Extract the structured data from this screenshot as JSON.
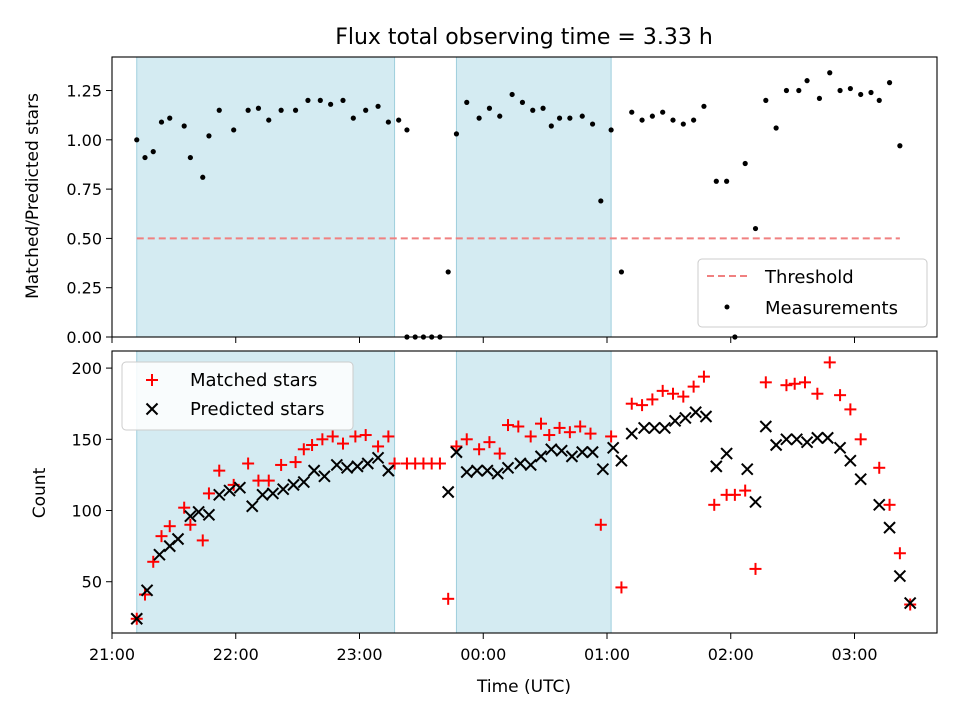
{
  "chart_data": [
    {
      "type": "scatter",
      "title": "Flux total observing time = 3.33 h",
      "ylabel": "Matched/Predicted stars",
      "xlim": [
        "21:00",
        "03:40"
      ],
      "ylim": [
        0,
        1.42
      ],
      "yticks": [
        0.0,
        0.25,
        0.5,
        0.75,
        1.0,
        1.25
      ],
      "ytick_labels": [
        "0.00",
        "0.25",
        "0.50",
        "0.75",
        "1.00",
        "1.25"
      ],
      "grid": false,
      "legend": {
        "placement": "lower-right",
        "entries": [
          "Threshold",
          "Measurements"
        ]
      },
      "shaded_intervals": [
        [
          "21:12",
          "23:17"
        ],
        [
          "23:47",
          "01:02"
        ]
      ],
      "shade_color": "#add8e6",
      "threshold": {
        "name": "Threshold",
        "value": 0.5,
        "x": [
          "21:12",
          "03:22"
        ],
        "color": "#f08080"
      },
      "series": [
        {
          "name": "Measurements",
          "color": "#000000",
          "points": [
            [
              "21:12",
              1.0
            ],
            [
              "21:16",
              0.91
            ],
            [
              "21:20",
              0.94
            ],
            [
              "21:24",
              1.09
            ],
            [
              "21:28",
              1.11
            ],
            [
              "21:35",
              1.07
            ],
            [
              "21:38",
              0.91
            ],
            [
              "21:44",
              0.81
            ],
            [
              "21:47",
              1.02
            ],
            [
              "21:52",
              1.15
            ],
            [
              "21:59",
              1.05
            ],
            [
              "22:06",
              1.15
            ],
            [
              "22:11",
              1.16
            ],
            [
              "22:16",
              1.1
            ],
            [
              "22:22",
              1.15
            ],
            [
              "22:29",
              1.15
            ],
            [
              "22:35",
              1.2
            ],
            [
              "22:41",
              1.2
            ],
            [
              "22:46",
              1.18
            ],
            [
              "22:52",
              1.2
            ],
            [
              "22:57",
              1.11
            ],
            [
              "23:03",
              1.15
            ],
            [
              "23:09",
              1.17
            ],
            [
              "23:14",
              1.09
            ],
            [
              "23:19",
              1.1
            ],
            [
              "23:23",
              1.05
            ],
            [
              "23:23",
              0.0
            ],
            [
              "23:27",
              0.0
            ],
            [
              "23:31",
              0.0
            ],
            [
              "23:35",
              0.0
            ],
            [
              "23:39",
              0.0
            ],
            [
              "23:43",
              0.33
            ],
            [
              "23:47",
              1.03
            ],
            [
              "23:52",
              1.19
            ],
            [
              "23:58",
              1.11
            ],
            [
              "00:03",
              1.16
            ],
            [
              "00:08",
              1.12
            ],
            [
              "00:14",
              1.23
            ],
            [
              "00:19",
              1.19
            ],
            [
              "00:24",
              1.15
            ],
            [
              "00:29",
              1.16
            ],
            [
              "00:33",
              1.07
            ],
            [
              "00:37",
              1.11
            ],
            [
              "00:42",
              1.11
            ],
            [
              "00:48",
              1.12
            ],
            [
              "00:53",
              1.08
            ],
            [
              "00:57",
              0.69
            ],
            [
              "01:02",
              1.05
            ],
            [
              "01:07",
              0.33
            ],
            [
              "01:12",
              1.14
            ],
            [
              "01:17",
              1.1
            ],
            [
              "01:22",
              1.12
            ],
            [
              "01:27",
              1.14
            ],
            [
              "01:32",
              1.1
            ],
            [
              "01:37",
              1.08
            ],
            [
              "01:42",
              1.1
            ],
            [
              "01:47",
              1.17
            ],
            [
              "01:53",
              0.79
            ],
            [
              "01:58",
              0.79
            ],
            [
              "02:07",
              0.88
            ],
            [
              "02:02",
              0.0
            ],
            [
              "02:12",
              0.55
            ],
            [
              "02:17",
              1.2
            ],
            [
              "02:22",
              1.06
            ],
            [
              "02:27",
              1.25
            ],
            [
              "02:33",
              1.25
            ],
            [
              "02:37",
              1.3
            ],
            [
              "02:43",
              1.21
            ],
            [
              "02:48",
              1.34
            ],
            [
              "02:53",
              1.25
            ],
            [
              "02:58",
              1.26
            ],
            [
              "03:03",
              1.23
            ],
            [
              "03:08",
              1.24
            ],
            [
              "03:12",
              1.2
            ],
            [
              "03:17",
              1.29
            ],
            [
              "03:22",
              0.97
            ]
          ]
        }
      ]
    },
    {
      "type": "scatter",
      "xlabel": "Time (UTC)",
      "ylabel": "Count",
      "xlim": [
        "21:00",
        "03:40"
      ],
      "ylim": [
        14,
        212
      ],
      "xticks": [
        "21:00",
        "22:00",
        "23:00",
        "00:00",
        "01:00",
        "02:00",
        "03:00"
      ],
      "yticks": [
        50,
        100,
        150,
        200
      ],
      "grid": false,
      "legend": {
        "placement": "upper-left",
        "entries": [
          "Matched stars",
          "Predicted stars"
        ]
      },
      "shaded_intervals": [
        [
          "21:12",
          "23:17"
        ],
        [
          "23:47",
          "01:02"
        ]
      ],
      "shade_color": "#add8e6",
      "series": [
        {
          "name": "Matched stars",
          "color": "#ff0000",
          "marker": "+",
          "points": [
            [
              "21:12",
              24
            ],
            [
              "21:16",
              41
            ],
            [
              "21:20",
              64
            ],
            [
              "21:24",
              82
            ],
            [
              "21:28",
              89
            ],
            [
              "21:35",
              102
            ],
            [
              "21:38",
              90
            ],
            [
              "21:44",
              79
            ],
            [
              "21:47",
              112
            ],
            [
              "21:52",
              128
            ],
            [
              "21:59",
              118
            ],
            [
              "22:06",
              133
            ],
            [
              "22:11",
              121
            ],
            [
              "22:16",
              121
            ],
            [
              "22:22",
              132
            ],
            [
              "22:29",
              134
            ],
            [
              "22:33",
              143
            ],
            [
              "22:37",
              146
            ],
            [
              "22:42",
              150
            ],
            [
              "22:47",
              152
            ],
            [
              "22:52",
              147
            ],
            [
              "22:58",
              152
            ],
            [
              "23:03",
              153
            ],
            [
              "23:09",
              145
            ],
            [
              "23:14",
              152
            ],
            [
              "23:17",
              133
            ],
            [
              "23:23",
              133
            ],
            [
              "23:27",
              133
            ],
            [
              "23:31",
              133
            ],
            [
              "23:35",
              133
            ],
            [
              "23:39",
              133
            ],
            [
              "23:43",
              38
            ],
            [
              "23:47",
              145
            ],
            [
              "23:52",
              150
            ],
            [
              "23:58",
              143
            ],
            [
              "00:03",
              148
            ],
            [
              "00:08",
              140
            ],
            [
              "00:12",
              160
            ],
            [
              "00:17",
              159
            ],
            [
              "00:23",
              152
            ],
            [
              "00:28",
              161
            ],
            [
              "00:32",
              153
            ],
            [
              "00:37",
              158
            ],
            [
              "00:42",
              155
            ],
            [
              "00:47",
              159
            ],
            [
              "00:52",
              154
            ],
            [
              "00:57",
              90
            ],
            [
              "01:02",
              152
            ],
            [
              "01:07",
              46
            ],
            [
              "01:12",
              175
            ],
            [
              "01:17",
              174
            ],
            [
              "01:22",
              178
            ],
            [
              "01:27",
              184
            ],
            [
              "01:32",
              182
            ],
            [
              "01:37",
              180
            ],
            [
              "01:42",
              187
            ],
            [
              "01:47",
              194
            ],
            [
              "01:52",
              104
            ],
            [
              "01:58",
              111
            ],
            [
              "02:02",
              111
            ],
            [
              "02:07",
              114
            ],
            [
              "02:12",
              59
            ],
            [
              "02:17",
              190
            ],
            [
              "02:27",
              188
            ],
            [
              "02:31",
              189
            ],
            [
              "02:36",
              190
            ],
            [
              "02:42",
              182
            ],
            [
              "02:48",
              204
            ],
            [
              "02:53",
              181
            ],
            [
              "02:58",
              171
            ],
            [
              "03:03",
              150
            ],
            [
              "03:12",
              130
            ],
            [
              "03:17",
              104
            ],
            [
              "03:22",
              70
            ],
            [
              "03:27",
              34
            ]
          ]
        },
        {
          "name": "Predicted stars",
          "color": "#000000",
          "marker": "x",
          "points": [
            [
              "21:12",
              24
            ],
            [
              "21:17",
              44
            ],
            [
              "21:23",
              69
            ],
            [
              "21:28",
              75
            ],
            [
              "21:32",
              80
            ],
            [
              "21:38",
              96
            ],
            [
              "21:42",
              99
            ],
            [
              "21:47",
              97
            ],
            [
              "21:52",
              111
            ],
            [
              "21:57",
              114
            ],
            [
              "22:02",
              116
            ],
            [
              "22:08",
              103
            ],
            [
              "22:13",
              111
            ],
            [
              "22:18",
              112
            ],
            [
              "22:23",
              115
            ],
            [
              "22:28",
              118
            ],
            [
              "22:33",
              120
            ],
            [
              "22:38",
              128
            ],
            [
              "22:43",
              124
            ],
            [
              "22:49",
              132
            ],
            [
              "22:54",
              130
            ],
            [
              "22:59",
              131
            ],
            [
              "23:04",
              133
            ],
            [
              "23:09",
              137
            ],
            [
              "23:14",
              128
            ],
            [
              "23:43",
              113
            ],
            [
              "23:47",
              141
            ],
            [
              "23:52",
              127
            ],
            [
              "23:57",
              128
            ],
            [
              "00:02",
              128
            ],
            [
              "00:07",
              126
            ],
            [
              "00:12",
              130
            ],
            [
              "00:18",
              133
            ],
            [
              "00:23",
              132
            ],
            [
              "00:28",
              138
            ],
            [
              "00:33",
              143
            ],
            [
              "00:38",
              142
            ],
            [
              "00:43",
              138
            ],
            [
              "00:48",
              141
            ],
            [
              "00:53",
              141
            ],
            [
              "00:58",
              129
            ],
            [
              "01:03",
              144
            ],
            [
              "01:07",
              135
            ],
            [
              "01:12",
              154
            ],
            [
              "01:18",
              158
            ],
            [
              "01:23",
              158
            ],
            [
              "01:28",
              158
            ],
            [
              "01:33",
              163
            ],
            [
              "01:38",
              165
            ],
            [
              "01:43",
              169
            ],
            [
              "01:48",
              166
            ],
            [
              "01:53",
              131
            ],
            [
              "01:58",
              140
            ],
            [
              "02:08",
              129
            ],
            [
              "02:12",
              106
            ],
            [
              "02:17",
              159
            ],
            [
              "02:22",
              146
            ],
            [
              "02:27",
              150
            ],
            [
              "02:32",
              150
            ],
            [
              "02:37",
              148
            ],
            [
              "02:42",
              151
            ],
            [
              "02:47",
              151
            ],
            [
              "02:53",
              144
            ],
            [
              "02:58",
              135
            ],
            [
              "03:03",
              122
            ],
            [
              "03:12",
              104
            ],
            [
              "03:17",
              88
            ],
            [
              "03:22",
              54
            ],
            [
              "03:27",
              35
            ]
          ]
        }
      ]
    }
  ]
}
